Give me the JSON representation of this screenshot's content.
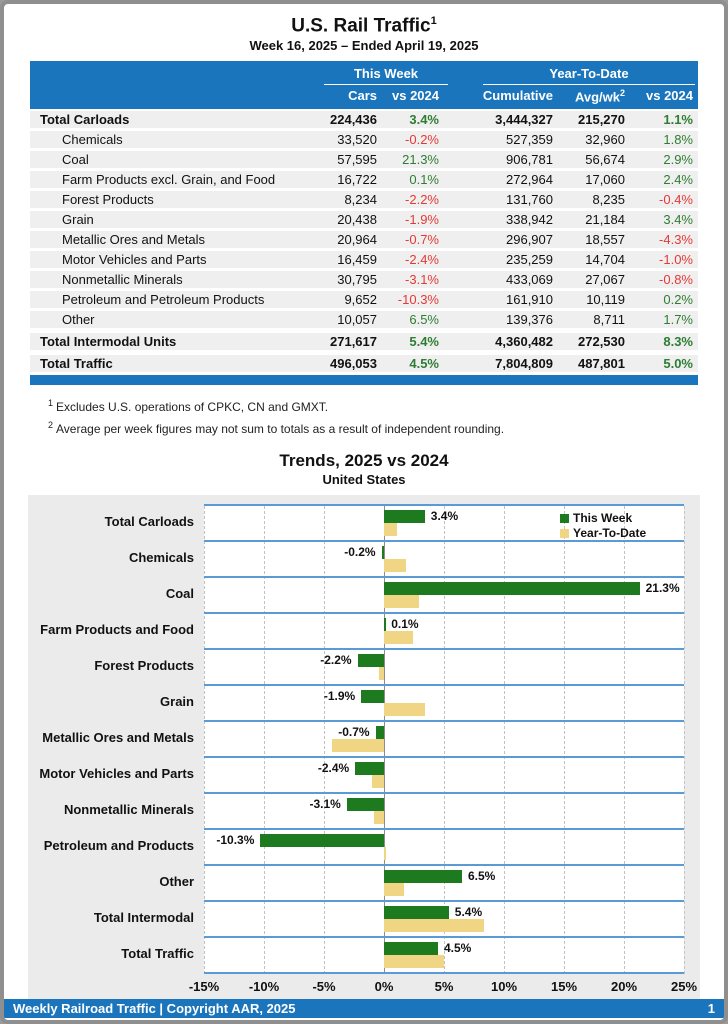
{
  "header": {
    "title": "U.S. Rail Traffic",
    "title_sup": "1",
    "subtitle": "Week 16, 2025 – Ended April 19, 2025"
  },
  "table": {
    "group_headers": {
      "this_week": "This Week",
      "ytd": "Year-To-Date"
    },
    "columns": [
      "Cars",
      "vs 2024",
      "Cumulative",
      "Avg/wk",
      "vs 2024"
    ],
    "avgwk_sup": "2",
    "rows": [
      {
        "label": "Total Carloads",
        "bold": true,
        "indent": false,
        "section": false,
        "cars": "224,436",
        "vs_week": "3.4%",
        "cumulative": "3,444,327",
        "avg_wk": "215,270",
        "vs_ytd": "1.1%"
      },
      {
        "label": "Chemicals",
        "bold": false,
        "indent": true,
        "section": false,
        "cars": "33,520",
        "vs_week": "-0.2%",
        "cumulative": "527,359",
        "avg_wk": "32,960",
        "vs_ytd": "1.8%"
      },
      {
        "label": "Coal",
        "bold": false,
        "indent": true,
        "section": false,
        "cars": "57,595",
        "vs_week": "21.3%",
        "cumulative": "906,781",
        "avg_wk": "56,674",
        "vs_ytd": "2.9%"
      },
      {
        "label": "Farm Products excl. Grain, and Food",
        "bold": false,
        "indent": true,
        "section": false,
        "cars": "16,722",
        "vs_week": "0.1%",
        "cumulative": "272,964",
        "avg_wk": "17,060",
        "vs_ytd": "2.4%"
      },
      {
        "label": "Forest Products",
        "bold": false,
        "indent": true,
        "section": false,
        "cars": "8,234",
        "vs_week": "-2.2%",
        "cumulative": "131,760",
        "avg_wk": "8,235",
        "vs_ytd": "-0.4%"
      },
      {
        "label": "Grain",
        "bold": false,
        "indent": true,
        "section": false,
        "cars": "20,438",
        "vs_week": "-1.9%",
        "cumulative": "338,942",
        "avg_wk": "21,184",
        "vs_ytd": "3.4%"
      },
      {
        "label": "Metallic Ores and Metals",
        "bold": false,
        "indent": true,
        "section": false,
        "cars": "20,964",
        "vs_week": "-0.7%",
        "cumulative": "296,907",
        "avg_wk": "18,557",
        "vs_ytd": "-4.3%"
      },
      {
        "label": "Motor Vehicles and Parts",
        "bold": false,
        "indent": true,
        "section": false,
        "cars": "16,459",
        "vs_week": "-2.4%",
        "cumulative": "235,259",
        "avg_wk": "14,704",
        "vs_ytd": "-1.0%"
      },
      {
        "label": "Nonmetallic Minerals",
        "bold": false,
        "indent": true,
        "section": false,
        "cars": "30,795",
        "vs_week": "-3.1%",
        "cumulative": "433,069",
        "avg_wk": "27,067",
        "vs_ytd": "-0.8%"
      },
      {
        "label": "Petroleum and Petroleum Products",
        "bold": false,
        "indent": true,
        "section": false,
        "cars": "9,652",
        "vs_week": "-10.3%",
        "cumulative": "161,910",
        "avg_wk": "10,119",
        "vs_ytd": "0.2%"
      },
      {
        "label": "Other",
        "bold": false,
        "indent": true,
        "section": false,
        "cars": "10,057",
        "vs_week": "6.5%",
        "cumulative": "139,376",
        "avg_wk": "8,711",
        "vs_ytd": "1.7%"
      },
      {
        "label": "Total Intermodal Units",
        "bold": true,
        "indent": false,
        "section": true,
        "cars": "271,617",
        "vs_week": "5.4%",
        "cumulative": "4,360,482",
        "avg_wk": "272,530",
        "vs_ytd": "8.3%"
      },
      {
        "label": "Total Traffic",
        "bold": true,
        "indent": false,
        "section": true,
        "cars": "496,053",
        "vs_week": "4.5%",
        "cumulative": "7,804,809",
        "avg_wk": "487,801",
        "vs_ytd": "5.0%"
      }
    ]
  },
  "footnotes": [
    {
      "sup": "1",
      "text": "Excludes U.S. operations of CPKC, CN and GMXT."
    },
    {
      "sup": "2",
      "text": "Average per week figures may not sum to totals as a result of independent rounding."
    }
  ],
  "chart_data": {
    "type": "bar",
    "orientation": "horizontal",
    "title": "Trends, 2025 vs 2024",
    "subtitle": "United States",
    "categories": [
      "Total Carloads",
      "Chemicals",
      "Coal",
      "Farm Products and Food",
      "Forest Products",
      "Grain",
      "Metallic Ores and Metals",
      "Motor Vehicles and Parts",
      "Nonmetallic Minerals",
      "Petroleum and Products",
      "Other",
      "Total Intermodal",
      "Total Traffic"
    ],
    "series": [
      {
        "name": "This Week",
        "color": "#1e7a1e",
        "values": [
          3.4,
          -0.2,
          21.3,
          0.1,
          -2.2,
          -1.9,
          -0.7,
          -2.4,
          -3.1,
          -10.3,
          6.5,
          5.4,
          4.5
        ]
      },
      {
        "name": "Year-To-Date",
        "color": "#f0d584",
        "values": [
          1.1,
          1.8,
          2.9,
          2.4,
          -0.4,
          3.4,
          -4.3,
          -1.0,
          -0.8,
          0.2,
          1.7,
          8.3,
          5.0
        ]
      }
    ],
    "bar_labels": [
      "3.4%",
      "-0.2%",
      "21.3%",
      "0.1%",
      "-2.2%",
      "-1.9%",
      "-0.7%",
      "-2.4%",
      "-3.1%",
      "-10.3%",
      "6.5%",
      "5.4%",
      "4.5%"
    ],
    "xlim": [
      -15,
      25
    ],
    "ticks": [
      -15,
      -10,
      -5,
      0,
      5,
      10,
      15,
      20,
      25
    ],
    "tick_labels": [
      "-15%",
      "-10%",
      "-5%",
      "0%",
      "5%",
      "10%",
      "15%",
      "20%",
      "25%"
    ],
    "legend": [
      "This Week",
      "Year-To-Date"
    ],
    "legend_position": "top-right",
    "grid": true
  },
  "footer": {
    "left": "Weekly Railroad Traffic | Copyright AAR, 2025",
    "page": "1"
  },
  "colors": {
    "header_blue": "#1b75bc",
    "positive_green": "#2e7d32",
    "negative_red": "#e53935",
    "bar_green": "#1e7a1e",
    "bar_tan": "#f0d584",
    "band_line_blue": "#5b9bd5",
    "row_stripe": "#efefef",
    "panel_gray": "#ebebeb"
  }
}
